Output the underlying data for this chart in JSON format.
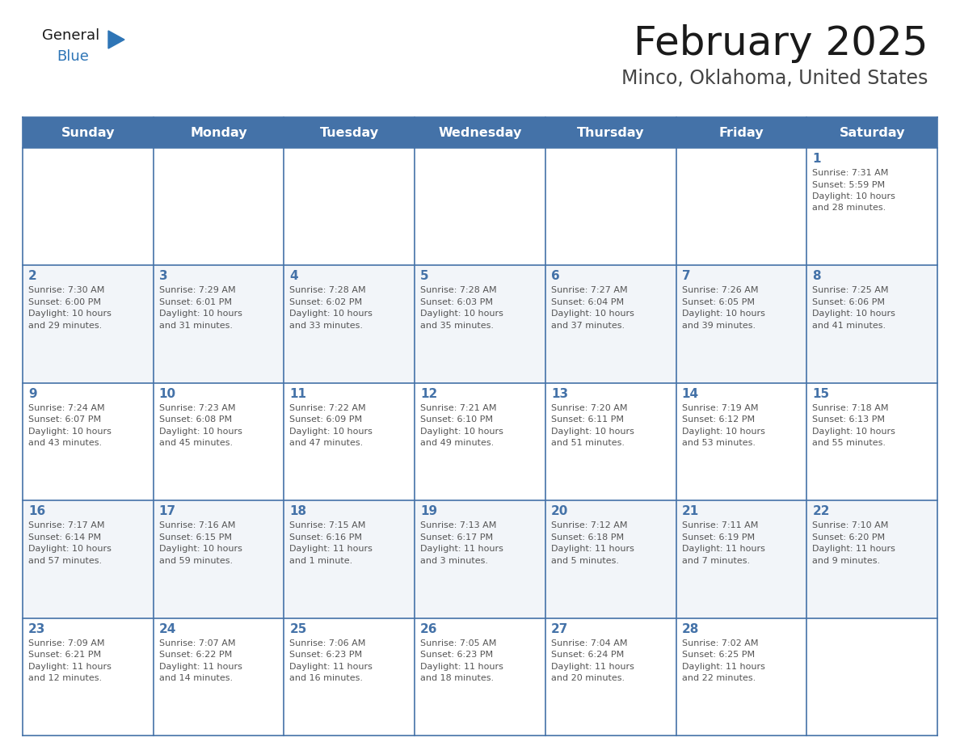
{
  "title": "February 2025",
  "subtitle": "Minco, Oklahoma, United States",
  "days_of_week": [
    "Sunday",
    "Monday",
    "Tuesday",
    "Wednesday",
    "Thursday",
    "Friday",
    "Saturday"
  ],
  "header_bg": "#4472a8",
  "header_text": "#ffffff",
  "cell_bg_odd": "#f2f5f9",
  "cell_bg_even": "#ffffff",
  "grid_line_color": "#4472a8",
  "day_num_color": "#4472a8",
  "info_text_color": "#555555",
  "title_color": "#1a1a1a",
  "subtitle_color": "#444444",
  "logo_general_color": "#1a1a1a",
  "logo_blue_color": "#2e75b6",
  "logo_triangle_color": "#2e75b6",
  "weeks": [
    [
      {
        "day": null,
        "info": ""
      },
      {
        "day": null,
        "info": ""
      },
      {
        "day": null,
        "info": ""
      },
      {
        "day": null,
        "info": ""
      },
      {
        "day": null,
        "info": ""
      },
      {
        "day": null,
        "info": ""
      },
      {
        "day": 1,
        "info": "Sunrise: 7:31 AM\nSunset: 5:59 PM\nDaylight: 10 hours\nand 28 minutes."
      }
    ],
    [
      {
        "day": 2,
        "info": "Sunrise: 7:30 AM\nSunset: 6:00 PM\nDaylight: 10 hours\nand 29 minutes."
      },
      {
        "day": 3,
        "info": "Sunrise: 7:29 AM\nSunset: 6:01 PM\nDaylight: 10 hours\nand 31 minutes."
      },
      {
        "day": 4,
        "info": "Sunrise: 7:28 AM\nSunset: 6:02 PM\nDaylight: 10 hours\nand 33 minutes."
      },
      {
        "day": 5,
        "info": "Sunrise: 7:28 AM\nSunset: 6:03 PM\nDaylight: 10 hours\nand 35 minutes."
      },
      {
        "day": 6,
        "info": "Sunrise: 7:27 AM\nSunset: 6:04 PM\nDaylight: 10 hours\nand 37 minutes."
      },
      {
        "day": 7,
        "info": "Sunrise: 7:26 AM\nSunset: 6:05 PM\nDaylight: 10 hours\nand 39 minutes."
      },
      {
        "day": 8,
        "info": "Sunrise: 7:25 AM\nSunset: 6:06 PM\nDaylight: 10 hours\nand 41 minutes."
      }
    ],
    [
      {
        "day": 9,
        "info": "Sunrise: 7:24 AM\nSunset: 6:07 PM\nDaylight: 10 hours\nand 43 minutes."
      },
      {
        "day": 10,
        "info": "Sunrise: 7:23 AM\nSunset: 6:08 PM\nDaylight: 10 hours\nand 45 minutes."
      },
      {
        "day": 11,
        "info": "Sunrise: 7:22 AM\nSunset: 6:09 PM\nDaylight: 10 hours\nand 47 minutes."
      },
      {
        "day": 12,
        "info": "Sunrise: 7:21 AM\nSunset: 6:10 PM\nDaylight: 10 hours\nand 49 minutes."
      },
      {
        "day": 13,
        "info": "Sunrise: 7:20 AM\nSunset: 6:11 PM\nDaylight: 10 hours\nand 51 minutes."
      },
      {
        "day": 14,
        "info": "Sunrise: 7:19 AM\nSunset: 6:12 PM\nDaylight: 10 hours\nand 53 minutes."
      },
      {
        "day": 15,
        "info": "Sunrise: 7:18 AM\nSunset: 6:13 PM\nDaylight: 10 hours\nand 55 minutes."
      }
    ],
    [
      {
        "day": 16,
        "info": "Sunrise: 7:17 AM\nSunset: 6:14 PM\nDaylight: 10 hours\nand 57 minutes."
      },
      {
        "day": 17,
        "info": "Sunrise: 7:16 AM\nSunset: 6:15 PM\nDaylight: 10 hours\nand 59 minutes."
      },
      {
        "day": 18,
        "info": "Sunrise: 7:15 AM\nSunset: 6:16 PM\nDaylight: 11 hours\nand 1 minute."
      },
      {
        "day": 19,
        "info": "Sunrise: 7:13 AM\nSunset: 6:17 PM\nDaylight: 11 hours\nand 3 minutes."
      },
      {
        "day": 20,
        "info": "Sunrise: 7:12 AM\nSunset: 6:18 PM\nDaylight: 11 hours\nand 5 minutes."
      },
      {
        "day": 21,
        "info": "Sunrise: 7:11 AM\nSunset: 6:19 PM\nDaylight: 11 hours\nand 7 minutes."
      },
      {
        "day": 22,
        "info": "Sunrise: 7:10 AM\nSunset: 6:20 PM\nDaylight: 11 hours\nand 9 minutes."
      }
    ],
    [
      {
        "day": 23,
        "info": "Sunrise: 7:09 AM\nSunset: 6:21 PM\nDaylight: 11 hours\nand 12 minutes."
      },
      {
        "day": 24,
        "info": "Sunrise: 7:07 AM\nSunset: 6:22 PM\nDaylight: 11 hours\nand 14 minutes."
      },
      {
        "day": 25,
        "info": "Sunrise: 7:06 AM\nSunset: 6:23 PM\nDaylight: 11 hours\nand 16 minutes."
      },
      {
        "day": 26,
        "info": "Sunrise: 7:05 AM\nSunset: 6:23 PM\nDaylight: 11 hours\nand 18 minutes."
      },
      {
        "day": 27,
        "info": "Sunrise: 7:04 AM\nSunset: 6:24 PM\nDaylight: 11 hours\nand 20 minutes."
      },
      {
        "day": 28,
        "info": "Sunrise: 7:02 AM\nSunset: 6:25 PM\nDaylight: 11 hours\nand 22 minutes."
      },
      {
        "day": null,
        "info": ""
      }
    ]
  ]
}
